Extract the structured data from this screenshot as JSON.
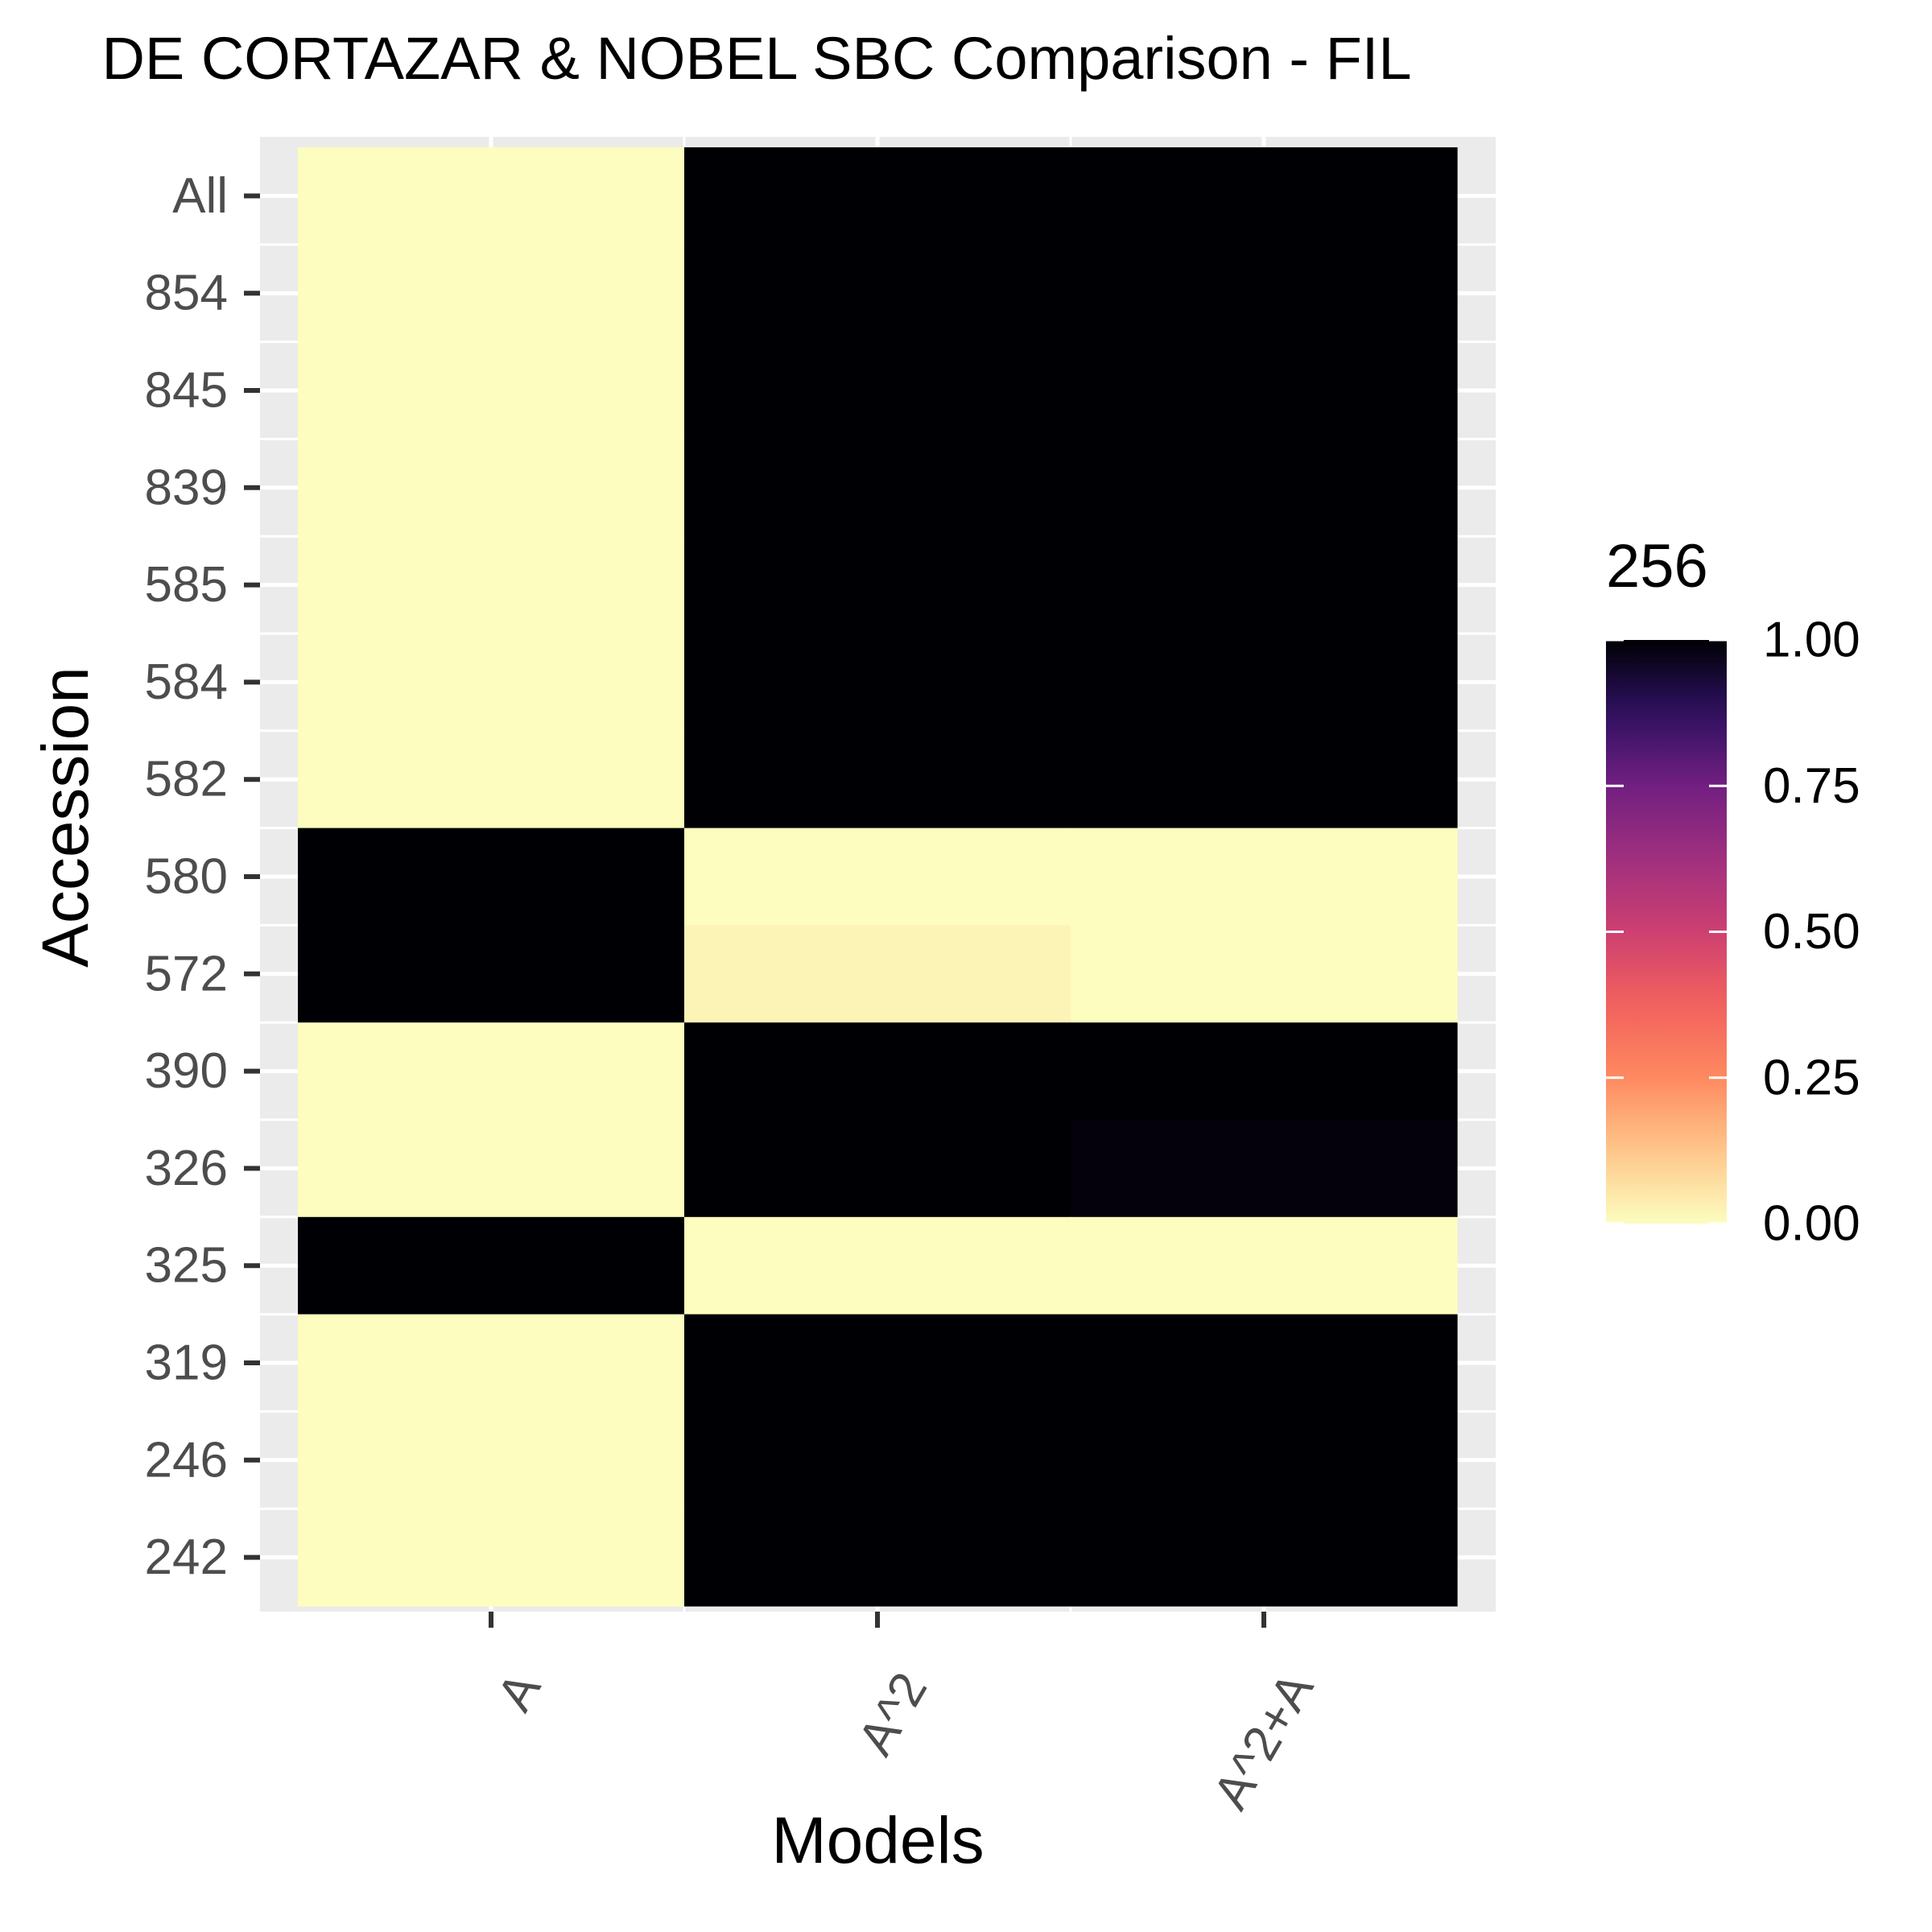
{
  "chart_data": {
    "type": "heatmap",
    "title": "DE CORTAZAR & NOBEL SBC Comparison - FIL",
    "xlabel": "Models",
    "ylabel": "Accession",
    "x_categories": [
      "A",
      "A^2",
      "A^2+A"
    ],
    "y_categories": [
      "All",
      "854",
      "845",
      "839",
      "585",
      "584",
      "582",
      "580",
      "572",
      "390",
      "326",
      "325",
      "319",
      "246",
      "242"
    ],
    "values": [
      [
        0,
        1,
        1
      ],
      [
        0,
        1,
        1
      ],
      [
        0,
        1,
        1
      ],
      [
        0,
        1,
        1
      ],
      [
        0,
        1,
        1
      ],
      [
        0,
        1,
        1
      ],
      [
        0,
        1,
        1
      ],
      [
        1,
        0,
        0
      ],
      [
        1,
        0.02,
        0
      ],
      [
        0,
        1,
        1
      ],
      [
        0,
        1,
        0.99
      ],
      [
        1,
        0,
        0
      ],
      [
        0,
        1,
        1
      ],
      [
        0,
        1,
        1
      ],
      [
        0,
        1,
        1
      ]
    ],
    "legend": {
      "title": "256",
      "position": "right",
      "range": [
        0,
        1
      ],
      "tick_labels": [
        "1.00",
        "0.75",
        "0.50",
        "0.25",
        "0.00"
      ],
      "tick_values": [
        1,
        0.75,
        0.5,
        0.25,
        0
      ]
    },
    "colormap": "magma-reversed",
    "colors": {
      "low": "#FCFDBF",
      "high": "#000004",
      "panel_background": "#EBEBEB",
      "gridline": "#FFFFFF",
      "tick_label": "#4D4D4D",
      "tick_mark": "#333333"
    },
    "grid": true
  }
}
